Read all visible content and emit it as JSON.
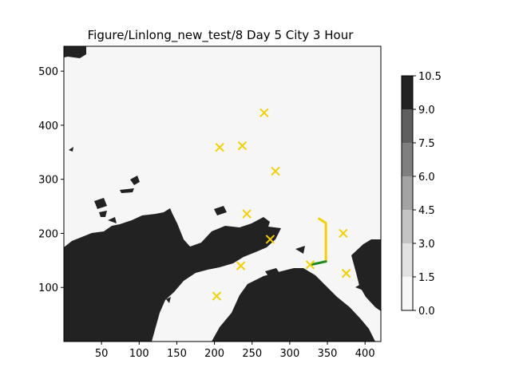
{
  "chart_data": {
    "type": "scatter",
    "title": "Figure/Linlong_new_test/8 Day 5 City 3 Hour",
    "xlim": [
      0,
      421
    ],
    "ylim": [
      0,
      546
    ],
    "x_ticks": [
      50,
      100,
      150,
      200,
      250,
      300,
      350,
      400
    ],
    "y_ticks": [
      100,
      200,
      300,
      400,
      500
    ],
    "background": "land/sea map (grayscale filled contour)",
    "cities": {
      "marker": "x",
      "color": "#f5d000",
      "points": [
        [
          266,
          423
        ],
        [
          207,
          359
        ],
        [
          237,
          362
        ],
        [
          281,
          315
        ],
        [
          243,
          236
        ],
        [
          274,
          189
        ],
        [
          371,
          200
        ],
        [
          235,
          140
        ],
        [
          327,
          142
        ],
        [
          375,
          126
        ],
        [
          203,
          84
        ]
      ]
    },
    "paths": [
      {
        "color": "#f5d000",
        "points": [
          [
            339,
            227
          ],
          [
            348,
            219
          ],
          [
            348,
            150
          ]
        ]
      },
      {
        "color": "#1e8a1e",
        "points": [
          [
            328,
            142
          ],
          [
            348,
            148
          ]
        ]
      }
    ],
    "colorbar": {
      "ticks": [
        "0.0",
        "1.5",
        "3.0",
        "4.5",
        "6.0",
        "7.5",
        "9.0",
        "10.5"
      ],
      "levels": [
        0.0,
        1.5,
        3.0,
        4.5,
        6.0,
        7.5,
        9.0,
        10.5
      ],
      "colors": [
        "#f7f7f7",
        "#e2e2e2",
        "#c4c4c4",
        "#a3a3a3",
        "#7f7f7f",
        "#5f5f5f",
        "#222222"
      ]
    },
    "grid": false,
    "legend": "none"
  },
  "colors": {
    "land": "#222222",
    "sea": "#f6f6f6"
  }
}
